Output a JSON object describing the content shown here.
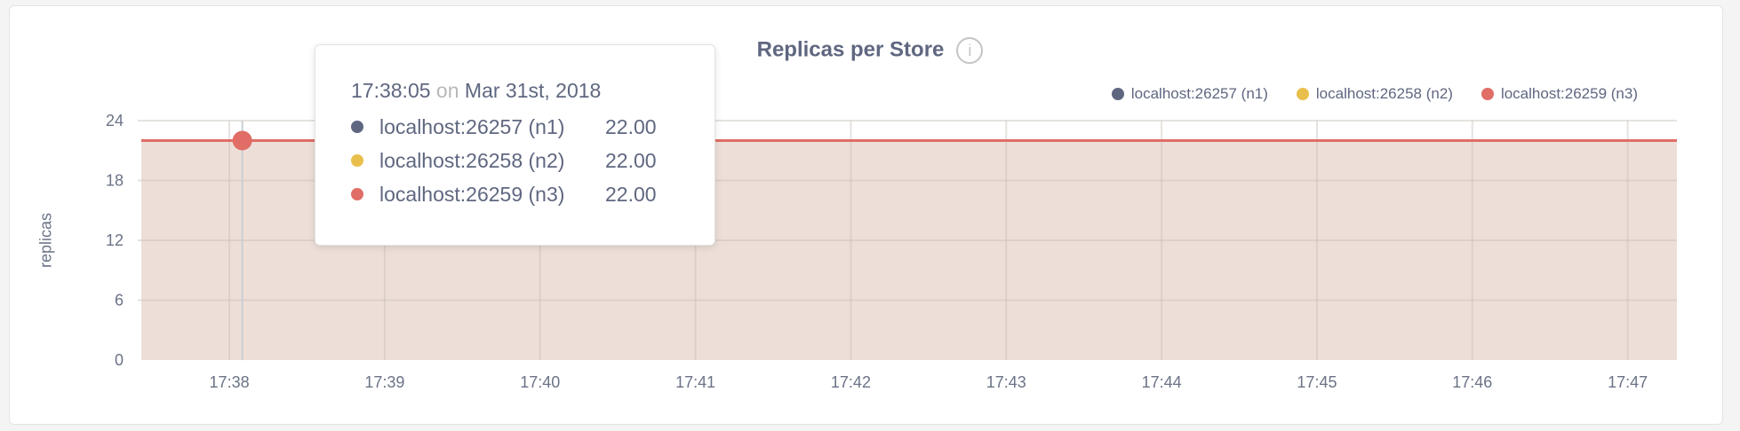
{
  "chart_data": {
    "type": "area",
    "title": "Replicas per Store",
    "ylabel": "replicas",
    "xlabel": "",
    "ylim": [
      0,
      24
    ],
    "yticks": [
      "0",
      "6",
      "12",
      "18",
      "24"
    ],
    "xlim": [
      "17:37:26",
      "17:47:19"
    ],
    "xticks": [
      "17:38",
      "17:39",
      "17:40",
      "17:41",
      "17:42",
      "17:43",
      "17:44",
      "17:45",
      "17:46",
      "17:47"
    ],
    "grid": true,
    "legend_position": "top-right",
    "series": [
      {
        "name": "localhost:26257 (n1)",
        "color": "#5f6780",
        "x": [
          "17:37:26",
          "17:47:19"
        ],
        "values": [
          22,
          22
        ]
      },
      {
        "name": "localhost:26258 (n2)",
        "color": "#e9bf4b",
        "x": [
          "17:37:26",
          "17:47:19"
        ],
        "values": [
          22,
          22
        ]
      },
      {
        "name": "localhost:26259 (n3)",
        "color": "#e06d66",
        "x": [
          "17:37:26",
          "17:47:19"
        ],
        "values": [
          22,
          22
        ]
      }
    ],
    "tooltip": {
      "time": "17:38:05",
      "on": "on",
      "date": "Mar 31st, 2018",
      "rows": [
        {
          "name": "localhost:26257 (n1)",
          "value": "22.00"
        },
        {
          "name": "localhost:26258 (n2)",
          "value": "22.00"
        },
        {
          "name": "localhost:26259 (n3)",
          "value": "22.00"
        }
      ]
    },
    "info_icon": "info-circle-icon"
  }
}
